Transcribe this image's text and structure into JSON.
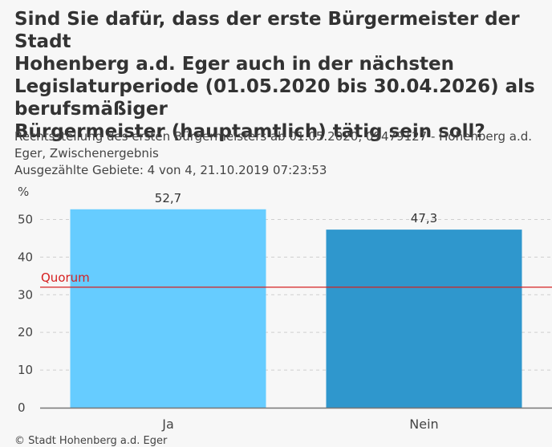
{
  "title": "Sind Sie dafür, dass der erste Bürgermeister der Stadt\nHohenberg a.d. Eger auch in der nächsten\nLegislaturperiode (01.05.2020 bis 30.04.2026) als\nberufsmäßiger\nBürgermeister (hauptamtlich) tätig sein soll?",
  "subtitle": "Rechtsstellung des ersten Bürgermeisters ab 01.05.2020, 09479127 - Hohenberg a.d.\nEger, Zwischenergebnis",
  "meta": "Ausgezählte Gebiete: 4 von 4, 21.10.2019 07:23:53",
  "unit": "%",
  "footer": "© Stadt Hohenberg a.d. Eger",
  "chart_data": {
    "type": "bar",
    "categories": [
      "Ja",
      "Nein"
    ],
    "values": [
      52.7,
      47.3
    ],
    "value_labels": [
      "52,7",
      "47,3"
    ],
    "colors": [
      "#66ccff",
      "#2f97cd"
    ],
    "ylim": [
      0,
      55
    ],
    "yticks": [
      0,
      10,
      20,
      30,
      40,
      50
    ],
    "reference_line": {
      "label": "Quorum",
      "value": 32,
      "color": "#d62020"
    },
    "grid": true
  }
}
